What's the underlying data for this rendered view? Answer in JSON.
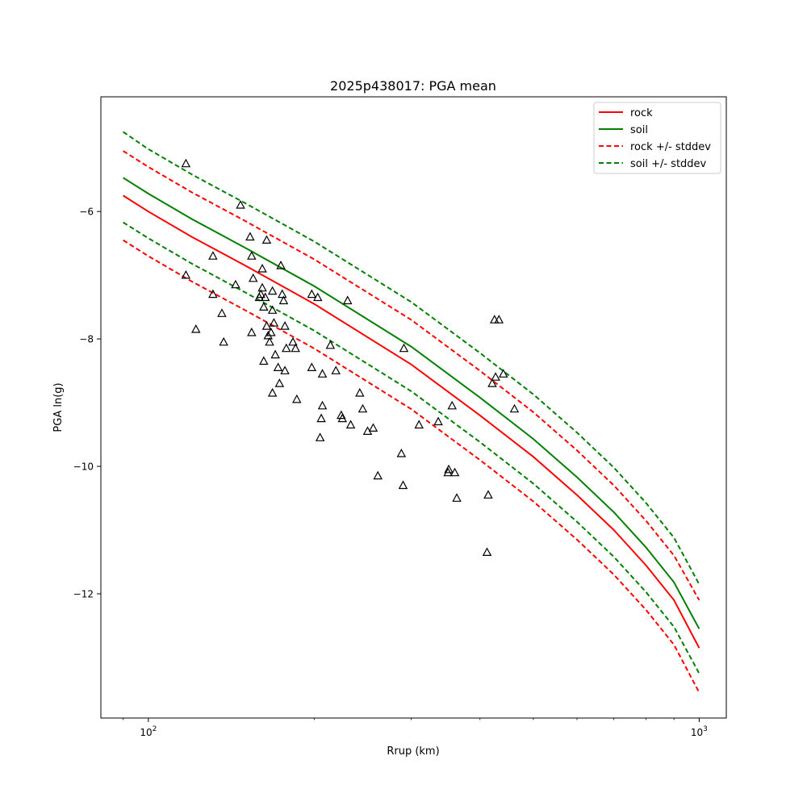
{
  "chart_data": {
    "type": "line",
    "title": "2025p438017: PGA mean",
    "xlabel": "Rrup (km)",
    "ylabel": "PGA ln(g)",
    "x_scale": "log",
    "xlim": [
      82,
      1120
    ],
    "ylim": [
      -13.95,
      -4.2
    ],
    "grid": false,
    "legend_position": "top-right",
    "x_ticks": [
      {
        "value": 100,
        "base": "10",
        "exp": "2"
      },
      {
        "value": 1000,
        "base": "10",
        "exp": "3"
      }
    ],
    "x_minor_ticks": [
      90,
      200,
      300,
      400,
      500,
      600,
      700,
      800,
      900
    ],
    "y_ticks": [
      {
        "value": -6,
        "label": "−6"
      },
      {
        "value": -8,
        "label": "−8"
      },
      {
        "value": -10,
        "label": "−10"
      },
      {
        "value": -12,
        "label": "−12"
      }
    ],
    "x": [
      90,
      100,
      120,
      150,
      200,
      300,
      400,
      500,
      600,
      700,
      800,
      900,
      1000
    ],
    "series": [
      {
        "name": "rock",
        "color": "#ff0000",
        "dash": "solid",
        "values": [
          -5.75,
          -6.0,
          -6.4,
          -6.85,
          -7.45,
          -8.4,
          -9.2,
          -9.85,
          -10.45,
          -11.0,
          -11.55,
          -12.1,
          -12.85
        ]
      },
      {
        "name": "soil",
        "color": "#008000",
        "dash": "solid",
        "values": [
          -5.47,
          -5.72,
          -6.12,
          -6.57,
          -7.17,
          -8.12,
          -8.92,
          -9.57,
          -10.17,
          -10.72,
          -11.27,
          -11.82,
          -12.55
        ]
      },
      {
        "name": "rock +/- stddev",
        "color": "#ff0000",
        "dash": "dashed",
        "values": [
          -5.05,
          -5.3,
          -5.7,
          -6.15,
          -6.75,
          -7.7,
          -8.5,
          -9.15,
          -9.75,
          -10.3,
          -10.85,
          -11.4,
          -12.1
        ]
      },
      {
        "name": "",
        "legend": false,
        "color": "#ff0000",
        "dash": "dashed",
        "values": [
          -6.45,
          -6.7,
          -7.1,
          -7.55,
          -8.15,
          -9.1,
          -9.9,
          -10.55,
          -11.15,
          -11.7,
          -12.25,
          -12.8,
          -13.55
        ]
      },
      {
        "name": "soil +/- stddev",
        "color": "#008000",
        "dash": "dashed",
        "values": [
          -4.75,
          -5.02,
          -5.42,
          -5.87,
          -6.47,
          -7.42,
          -8.22,
          -8.87,
          -9.47,
          -10.02,
          -10.57,
          -11.12,
          -11.85
        ]
      },
      {
        "name": "",
        "legend": false,
        "color": "#008000",
        "dash": "dashed",
        "values": [
          -6.17,
          -6.42,
          -6.82,
          -7.27,
          -7.87,
          -8.82,
          -9.62,
          -10.27,
          -10.87,
          -11.42,
          -11.97,
          -12.52,
          -13.25
        ]
      }
    ],
    "observations": {
      "marker": "triangle",
      "points": [
        [
          117,
          -5.25
        ],
        [
          117,
          -7.0
        ],
        [
          122,
          -7.85
        ],
        [
          131,
          -6.7
        ],
        [
          131,
          -7.3
        ],
        [
          136,
          -7.6
        ],
        [
          137,
          -8.05
        ],
        [
          144,
          -7.15
        ],
        [
          147,
          -5.9
        ],
        [
          153,
          -6.4
        ],
        [
          154,
          -6.7
        ],
        [
          154,
          -7.9
        ],
        [
          155,
          -7.05
        ],
        [
          159,
          -7.35
        ],
        [
          160,
          -7.3
        ],
        [
          161,
          -6.9
        ],
        [
          161,
          -7.2
        ],
        [
          162,
          -8.35
        ],
        [
          162,
          -7.5
        ],
        [
          163,
          -7.35
        ],
        [
          164,
          -7.8
        ],
        [
          164,
          -6.45
        ],
        [
          165,
          -7.95
        ],
        [
          166,
          -8.05
        ],
        [
          167,
          -7.9
        ],
        [
          168,
          -7.55
        ],
        [
          168,
          -7.25
        ],
        [
          168,
          -8.85
        ],
        [
          169,
          -7.75
        ],
        [
          170,
          -8.25
        ],
        [
          172,
          -8.45
        ],
        [
          173,
          -8.7
        ],
        [
          174,
          -6.85
        ],
        [
          175,
          -7.3
        ],
        [
          176,
          -7.4
        ],
        [
          177,
          -7.8
        ],
        [
          177,
          -8.5
        ],
        [
          178,
          -8.15
        ],
        [
          183,
          -8.05
        ],
        [
          185,
          -8.15
        ],
        [
          186,
          -8.95
        ],
        [
          198,
          -7.3
        ],
        [
          198,
          -8.45
        ],
        [
          203,
          -7.35
        ],
        [
          205,
          -9.55
        ],
        [
          206,
          -9.25
        ],
        [
          207,
          -9.05
        ],
        [
          207,
          -8.55
        ],
        [
          214,
          -8.1
        ],
        [
          219,
          -8.5
        ],
        [
          224,
          -9.2
        ],
        [
          225,
          -9.25
        ],
        [
          230,
          -7.4
        ],
        [
          233,
          -9.35
        ],
        [
          242,
          -8.85
        ],
        [
          245,
          -9.1
        ],
        [
          250,
          -9.45
        ],
        [
          256,
          -9.4
        ],
        [
          261,
          -10.15
        ],
        [
          288,
          -9.8
        ],
        [
          290,
          -10.3
        ],
        [
          291,
          -8.15
        ],
        [
          310,
          -9.35
        ],
        [
          336,
          -9.3
        ],
        [
          350,
          -10.1
        ],
        [
          351,
          -10.05
        ],
        [
          356,
          -9.05
        ],
        [
          360,
          -10.1
        ],
        [
          363,
          -10.5
        ],
        [
          412,
          -11.35
        ],
        [
          414,
          -10.45
        ],
        [
          421,
          -8.7
        ],
        [
          425,
          -7.7
        ],
        [
          427,
          -8.6
        ],
        [
          433,
          -7.7
        ],
        [
          441,
          -8.55
        ],
        [
          462,
          -9.1
        ]
      ]
    }
  }
}
